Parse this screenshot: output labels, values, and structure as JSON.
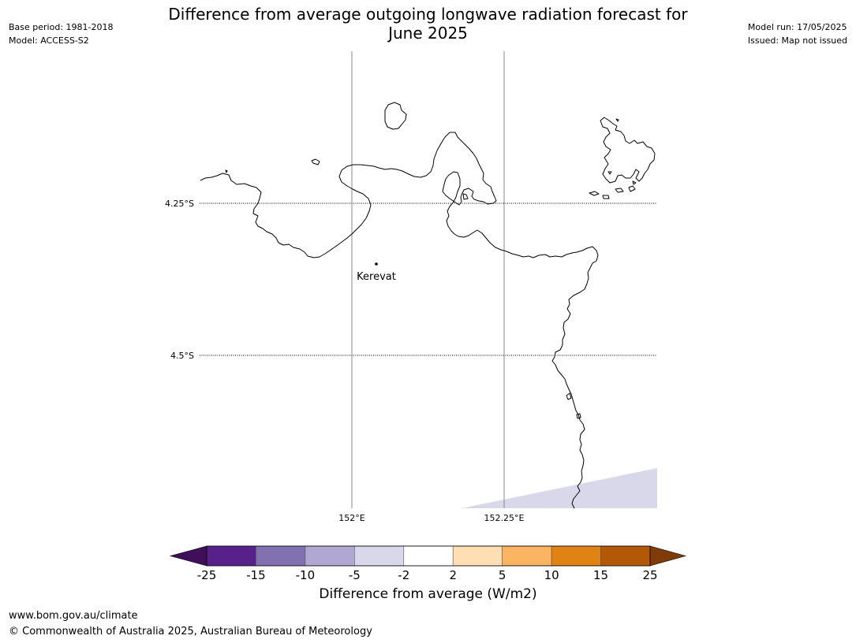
{
  "title": {
    "line1": "Difference from average outgoing longwave radiation forecast for",
    "line2": "June 2025"
  },
  "meta_left": {
    "base_period": "Base period: 1981-2018",
    "model": "Model: ACCESS-S2"
  },
  "meta_right": {
    "model_run": "Model run: 17/05/2025",
    "issued": "Issued: Map not issued"
  },
  "map": {
    "lat_labels": [
      "4.25°S",
      "4.5°S"
    ],
    "lon_labels": [
      "152°E",
      "152.25°E"
    ],
    "place_label": "Kerevat",
    "shaded_category_color": "#d8d8ea",
    "coastline_color": "#000000"
  },
  "colorbar": {
    "ticks": [
      "-25",
      "-15",
      "-10",
      "-5",
      "-2",
      "2",
      "5",
      "10",
      "15",
      "25"
    ],
    "colors": [
      "#57208a",
      "#8271b1",
      "#b0a8d2",
      "#d8d8ea",
      "#ffffff",
      "#fedeb3",
      "#fbb562",
      "#e08214",
      "#b35806"
    ],
    "under_color": "#3f0f5a",
    "over_color": "#7f3b08",
    "label": "Difference from average (W/m2)"
  },
  "footer": {
    "url": "www.bom.gov.au/climate",
    "copyright": "© Commonwealth of Australia 2025, Australian Bureau of Meteorology"
  }
}
